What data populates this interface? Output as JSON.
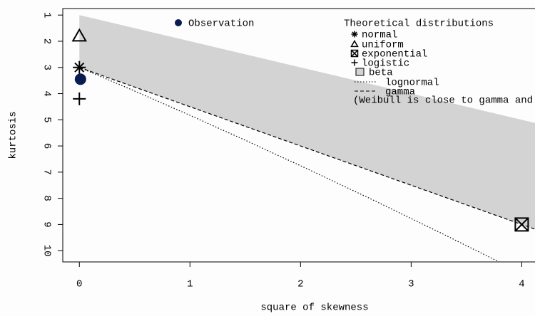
{
  "chart_data": {
    "type": "cullen-frey",
    "xlabel": "square of skewness",
    "ylabel": "kurtosis",
    "xlim": [
      -0.15,
      4.12
    ],
    "ylim": [
      0.75,
      10.43
    ],
    "y_reversed": true,
    "xticks": [
      0,
      1,
      2,
      3,
      4
    ],
    "yticks": [
      1,
      2,
      3,
      4,
      5,
      6,
      7,
      8,
      9,
      10
    ],
    "observation": {
      "name": "Observation",
      "x": 0.01,
      "y": 3.45,
      "color": "#0b1a4f"
    },
    "legend_title": "Theoretical distributions",
    "distributions": [
      {
        "name": "normal",
        "marker": "asterisk",
        "x": [
          0
        ],
        "y": [
          3
        ]
      },
      {
        "name": "uniform",
        "marker": "triangle",
        "x": [
          0
        ],
        "y": [
          1.8
        ]
      },
      {
        "name": "exponential",
        "marker": "boxed-x",
        "x": [
          4
        ],
        "y": [
          9
        ]
      },
      {
        "name": "logistic",
        "marker": "plus",
        "x": [
          0
        ],
        "y": [
          4.2
        ]
      },
      {
        "name": "beta",
        "marker": "area",
        "color": "#d3d3d3",
        "x": [
          0,
          4.12,
          4.12,
          0
        ],
        "y": [
          1,
          5.12,
          9.18,
          3
        ]
      },
      {
        "name": "lognormal",
        "marker": "dotted",
        "x": [
          0,
          0.465,
          0.961,
          1.488,
          2.048,
          2.641,
          3.267,
          3.928
        ],
        "y": [
          3,
          3.838,
          4.756,
          5.758,
          6.85,
          8.035,
          9.32,
          10.709
        ]
      },
      {
        "name": "gamma",
        "marker": "dashed",
        "x": [
          0,
          4.12
        ],
        "y": [
          3,
          9.18
        ]
      }
    ],
    "note": "(Weibull is close to gamma and lognorma"
  }
}
